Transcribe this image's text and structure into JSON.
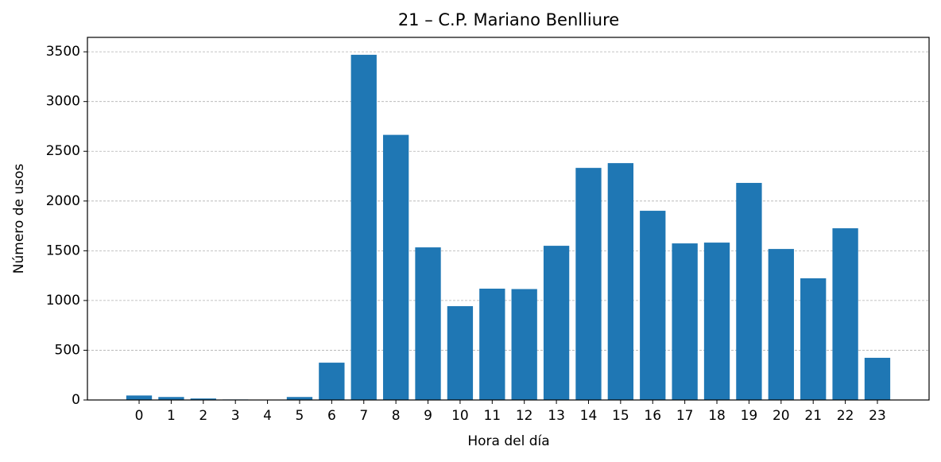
{
  "chart_data": {
    "type": "bar",
    "title": "21 – C.P. Mariano Benlliure",
    "x_label": "Hora del día",
    "y_label": "Número de usos",
    "categories": [
      "0",
      "1",
      "2",
      "3",
      "4",
      "5",
      "6",
      "7",
      "8",
      "9",
      "10",
      "11",
      "12",
      "13",
      "14",
      "15",
      "16",
      "17",
      "18",
      "19",
      "20",
      "21",
      "22",
      "23"
    ],
    "values": [
      45,
      30,
      15,
      5,
      3,
      30,
      375,
      3470,
      2665,
      1534,
      943,
      1119,
      1115,
      1550,
      2333,
      2381,
      1902,
      1574,
      1582,
      2182,
      1518,
      1223,
      1726,
      424
    ],
    "color": "#1f77b4",
    "ylim": [
      0,
      3645
    ],
    "yticks": [
      0,
      500,
      1000,
      1500,
      2000,
      2500,
      3000,
      3500
    ],
    "grid": true
  }
}
